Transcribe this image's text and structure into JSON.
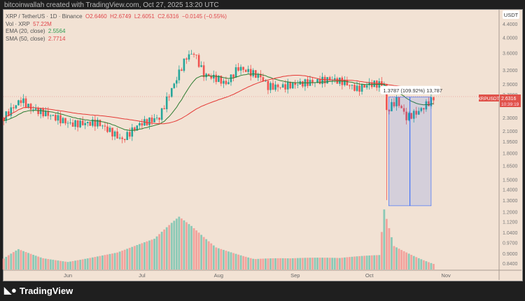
{
  "credit": "bitcoinwallah created with TradingView.com, Oct 27, 2025 13:20 UTC",
  "legend": {
    "symbol": "XRP / TetherUS · 1D · Binance",
    "o": "O2.6460",
    "h": "H2.6749",
    "l": "L2.6051",
    "c": "C2.6316",
    "chg": "−0.0145 (−0.55%)",
    "vol_label": "Vol · XRP",
    "vol_value": "57.22M",
    "ema_label": "EMA (20, close)",
    "ema_value": "2.5564",
    "sma_label": "SMA (50, close)",
    "sma_value": "2.7714"
  },
  "currency": "USDT",
  "price_tag": {
    "symbol": "XRPUSDT",
    "price": "2.6316",
    "countdown": "10:39:19"
  },
  "measure_label": "1.3787 (109.92%) 13,787",
  "logo": "TradingView",
  "colors": {
    "up": "#26a69a",
    "down": "#ef5350",
    "ema": "#2e7d32",
    "sma": "#e53935",
    "measure": "#2962ff"
  },
  "chart_data": {
    "type": "candlestick",
    "scale": "log",
    "ylim": [
      0.84,
      4.4
    ],
    "y_ticks": [
      "4.4000",
      "4.0000",
      "3.6000",
      "3.2000",
      "2.9000",
      "2.7000",
      "2.3000",
      "2.1000",
      "1.9500",
      "1.8000",
      "1.6500",
      "1.5000",
      "1.4000",
      "1.3000",
      "1.2000",
      "1.1200",
      "1.0400",
      "0.9700",
      "0.9000",
      "0.8400"
    ],
    "x_ticks": [
      {
        "label": "Jun",
        "day": 0
      },
      {
        "label": "Jul",
        "day": 30
      },
      {
        "label": "Aug",
        "day": 61
      },
      {
        "label": "Sep",
        "day": 92
      },
      {
        "label": "Oct",
        "day": 122
      },
      {
        "label": "Nov",
        "day": 153
      }
    ],
    "price_keypoints": [
      [
        -26,
        2.3
      ],
      [
        -19,
        2.6
      ],
      [
        -15,
        2.45
      ],
      [
        -8,
        2.35
      ],
      [
        1,
        2.2
      ],
      [
        12,
        2.22
      ],
      [
        22,
        1.97
      ],
      [
        29,
        2.2
      ],
      [
        37,
        2.3
      ],
      [
        43,
        2.9
      ],
      [
        48,
        3.5
      ],
      [
        51,
        3.6
      ],
      [
        55,
        3.1
      ],
      [
        61,
        3.0
      ],
      [
        64,
        2.9
      ],
      [
        69,
        3.25
      ],
      [
        78,
        3.05
      ],
      [
        81,
        2.85
      ],
      [
        87,
        2.85
      ],
      [
        92,
        2.9
      ],
      [
        100,
        2.95
      ],
      [
        106,
        3.0
      ],
      [
        111,
        2.95
      ],
      [
        117,
        2.8
      ],
      [
        122,
        2.9
      ],
      [
        128,
        2.9
      ],
      [
        129,
        2.4
      ],
      [
        133,
        2.6
      ],
      [
        137,
        2.3
      ],
      [
        142,
        2.4
      ],
      [
        148,
        2.63
      ]
    ],
    "volume_keypoints": [
      [
        -26,
        15
      ],
      [
        -20,
        30
      ],
      [
        -10,
        20
      ],
      [
        0,
        18
      ],
      [
        20,
        25
      ],
      [
        35,
        40
      ],
      [
        45,
        70
      ],
      [
        50,
        60
      ],
      [
        60,
        35
      ],
      [
        75,
        25
      ],
      [
        90,
        18
      ],
      [
        110,
        15
      ],
      [
        126,
        20
      ],
      [
        128,
        85
      ],
      [
        132,
        35
      ],
      [
        148,
        12
      ]
    ],
    "measure": {
      "from": 2.65,
      "to": 1.25,
      "change": "1.3787 (109.92%)"
    }
  }
}
